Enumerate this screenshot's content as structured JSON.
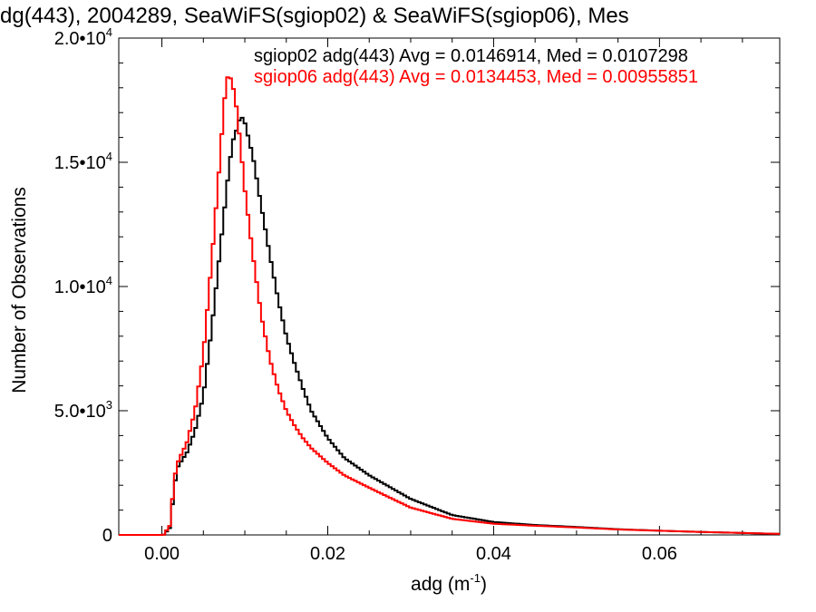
{
  "chart_data": {
    "type": "line",
    "title": "dg(443), 2004289, SeaWiFS(sgiop02) & SeaWiFS(sgiop06), Mes",
    "xlabel": "adg (m",
    "xlabel_sup": "-1",
    "xlabel_close": ")",
    "ylabel": "Number of Observations",
    "xlim": [
      -0.0052,
      0.0745
    ],
    "ylim": [
      0,
      20000
    ],
    "xticks": [
      {
        "value": 0.0,
        "label": "0.00"
      },
      {
        "value": 0.02,
        "label": "0.02"
      },
      {
        "value": 0.04,
        "label": "0.04"
      },
      {
        "value": 0.06,
        "label": "0.06"
      }
    ],
    "yticks": [
      {
        "value": 0,
        "base": "0",
        "exp": ""
      },
      {
        "value": 5000,
        "base": "5.0•10",
        "exp": "3"
      },
      {
        "value": 10000,
        "base": "1.0•10",
        "exp": "4"
      },
      {
        "value": 15000,
        "base": "1.5•10",
        "exp": "4"
      },
      {
        "value": 20000,
        "base": "2.0•10",
        "exp": "4"
      }
    ],
    "legend_position": "top-right",
    "series": [
      {
        "name": "sgiop02 adg(443) Avg = 0.0146914, Med = 0.0107298",
        "color": "#000000",
        "points": [
          [
            -0.0052,
            0
          ],
          [
            0.0002,
            0
          ],
          [
            0.001,
            300
          ],
          [
            0.0015,
            2000
          ],
          [
            0.002,
            2800
          ],
          [
            0.003,
            3300
          ],
          [
            0.004,
            4200
          ],
          [
            0.005,
            5600
          ],
          [
            0.006,
            8300
          ],
          [
            0.007,
            11400
          ],
          [
            0.008,
            14500
          ],
          [
            0.0085,
            15800
          ],
          [
            0.009,
            16300
          ],
          [
            0.0095,
            16900
          ],
          [
            0.01,
            16600
          ],
          [
            0.011,
            15200
          ],
          [
            0.012,
            13200
          ],
          [
            0.013,
            11300
          ],
          [
            0.014,
            9500
          ],
          [
            0.015,
            8000
          ],
          [
            0.016,
            6900
          ],
          [
            0.017,
            5900
          ],
          [
            0.018,
            5000
          ],
          [
            0.02,
            3900
          ],
          [
            0.022,
            3100
          ],
          [
            0.025,
            2400
          ],
          [
            0.03,
            1450
          ],
          [
            0.035,
            800
          ],
          [
            0.04,
            520
          ],
          [
            0.045,
            400
          ],
          [
            0.05,
            320
          ],
          [
            0.055,
            230
          ],
          [
            0.06,
            170
          ],
          [
            0.065,
            120
          ],
          [
            0.07,
            80
          ],
          [
            0.0745,
            40
          ]
        ]
      },
      {
        "name": "sgiop06 adg(443) Avg = 0.0134453, Med = 0.00955851",
        "color": "#ff0000",
        "points": [
          [
            -0.0052,
            0
          ],
          [
            0.0002,
            0
          ],
          [
            0.001,
            400
          ],
          [
            0.0015,
            2300
          ],
          [
            0.002,
            3000
          ],
          [
            0.003,
            3700
          ],
          [
            0.004,
            5000
          ],
          [
            0.005,
            7300
          ],
          [
            0.006,
            11000
          ],
          [
            0.007,
            15100
          ],
          [
            0.0075,
            17400
          ],
          [
            0.008,
            18600
          ],
          [
            0.0085,
            18200
          ],
          [
            0.009,
            17200
          ],
          [
            0.0095,
            15600
          ],
          [
            0.01,
            13900
          ],
          [
            0.011,
            11200
          ],
          [
            0.012,
            8800
          ],
          [
            0.013,
            7100
          ],
          [
            0.014,
            5900
          ],
          [
            0.015,
            5000
          ],
          [
            0.016,
            4400
          ],
          [
            0.017,
            3900
          ],
          [
            0.018,
            3500
          ],
          [
            0.02,
            2900
          ],
          [
            0.022,
            2400
          ],
          [
            0.025,
            1900
          ],
          [
            0.03,
            1100
          ],
          [
            0.035,
            650
          ],
          [
            0.04,
            450
          ],
          [
            0.045,
            370
          ],
          [
            0.05,
            300
          ],
          [
            0.055,
            220
          ],
          [
            0.06,
            170
          ],
          [
            0.065,
            120
          ],
          [
            0.07,
            80
          ],
          [
            0.0745,
            40
          ]
        ]
      }
    ]
  }
}
